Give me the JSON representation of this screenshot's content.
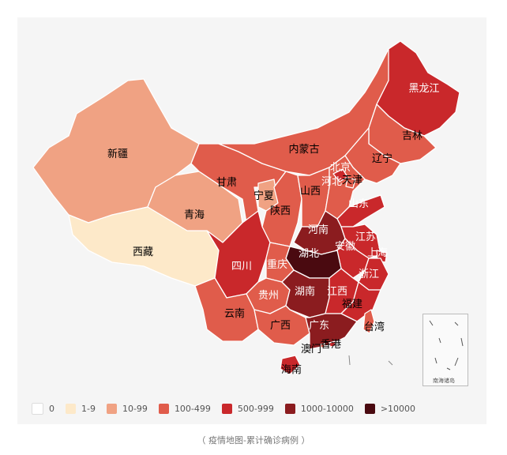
{
  "legend": [
    {
      "label": "0",
      "color": "#ffffff"
    },
    {
      "label": "1-9",
      "color": "#fde9c9"
    },
    {
      "label": "10-99",
      "color": "#f0a283"
    },
    {
      "label": "100-499",
      "color": "#e05c4b"
    },
    {
      "label": "500-999",
      "color": "#c9282b"
    },
    {
      "label": "1000-10000",
      "color": "#8b1c1f"
    },
    {
      "label": ">10000",
      "color": "#4a0a10"
    }
  ],
  "provinces": {
    "heilongjiang": "黑龙江",
    "jilin": "吉林",
    "liaoning": "辽宁",
    "neimenggu": "内蒙古",
    "beijing": "北京",
    "tianjin": "天津",
    "hebei": "河北",
    "shanxi": "山西",
    "shandong": "山东",
    "xinjiang": "新疆",
    "xizang": "西藏",
    "qinghai": "青海",
    "gansu": "甘肃",
    "ningxia": "宁夏",
    "shaanxi": "陕西",
    "henan": "河南",
    "jiangsu": "江苏",
    "anhui": "安徽",
    "shanghai": "上海",
    "hubei": "湖北",
    "zhejiang": "浙江",
    "sichuan": "四川",
    "chongqing": "重庆",
    "guizhou": "贵州",
    "hunan": "湖南",
    "jiangxi": "江西",
    "fujian": "福建",
    "yunnan": "云南",
    "guangxi": "广西",
    "guangdong": "广东",
    "taiwan": "台湾",
    "xianggang": "香港",
    "aomen": "澳门",
    "hainan": "海南"
  },
  "inset_label": "南海诸岛",
  "caption": "（ 疫情地图-累计确诊病例 ）"
}
